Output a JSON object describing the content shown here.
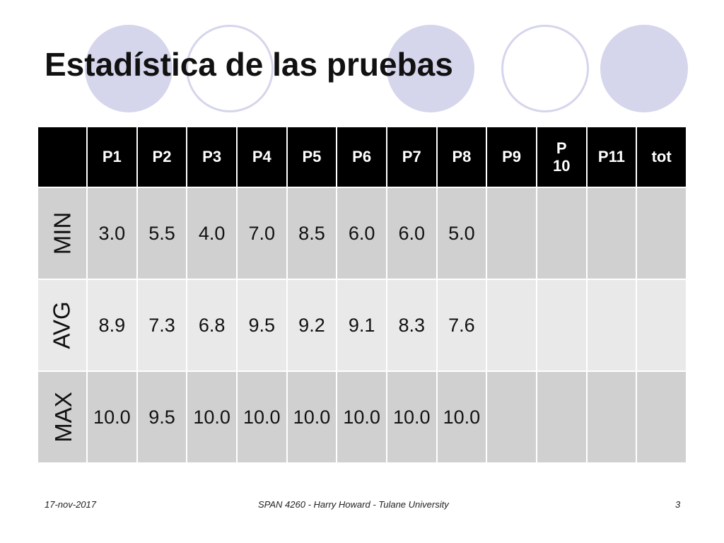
{
  "slide": {
    "title": "Estadística de las pruebas",
    "footer": {
      "date": "17-nov-2017",
      "course": "SPAN 4260 - Harry Howard - Tulane University",
      "page_number": "3"
    }
  },
  "table": {
    "corner": "",
    "headers": [
      "P1",
      "P2",
      "P3",
      "P4",
      "P5",
      "P6",
      "P7",
      "P8",
      "P9",
      "P10",
      "P11",
      "tot"
    ],
    "rows": [
      {
        "label": "MIN",
        "values": [
          "3.0",
          "5.5",
          "4.0",
          "7.0",
          "8.5",
          "6.0",
          "6.0",
          "5.0",
          "",
          "",
          "",
          ""
        ]
      },
      {
        "label": "AVG",
        "values": [
          "8.9",
          "7.3",
          "6.8",
          "9.5",
          "9.2",
          "9.1",
          "8.3",
          "7.6",
          "",
          "",
          "",
          ""
        ]
      },
      {
        "label": "MAX",
        "values": [
          "10.0",
          "9.5",
          "10.0",
          "10.0",
          "10.0",
          "10.0",
          "10.0",
          "10.0",
          "",
          "",
          "",
          ""
        ]
      }
    ]
  },
  "colors": {
    "header_bg": "#000000",
    "row_dark": "#d0d0d0",
    "row_light": "#e9e9e9",
    "decor_circle": "#d5d5ec"
  }
}
